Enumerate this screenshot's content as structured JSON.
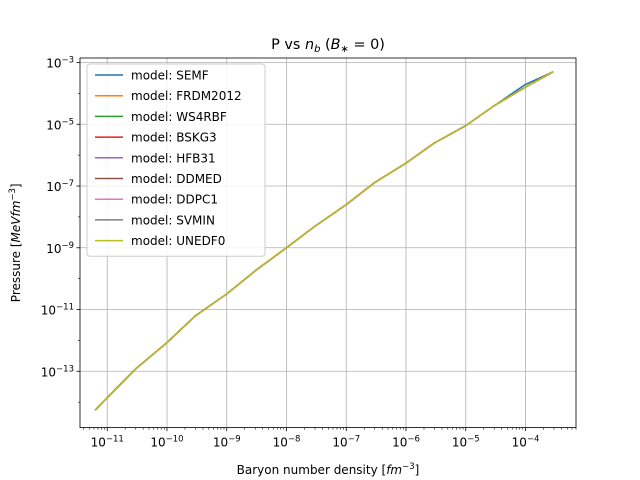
{
  "chart_data": {
    "type": "line",
    "title": "P vs n_b (B_* = 0)",
    "title_parts": {
      "prefix": "P vs ",
      "n": "n",
      "n_sub": "b",
      "paren_open": " (",
      "B": "B",
      "B_sub": "∗",
      "eq": " = 0)"
    },
    "xlabel": "Baryon number density [fm⁻³]",
    "xlabel_parts": {
      "text": "Baryon number density [",
      "unit": "fm",
      "exp": "−3",
      "close": "]"
    },
    "ylabel": "Pressure [MeVfm⁻³]",
    "ylabel_parts": {
      "text": "Pressure [",
      "unit": "MeVfm",
      "exp": "−3",
      "close": "]"
    },
    "xscale": "log",
    "yscale": "log",
    "xlim": [
      3.5e-12,
      0.0007
    ],
    "ylim": [
      1.5e-15,
      0.0014
    ],
    "grid": true,
    "legend_position": "top-left",
    "x_ticks": [
      {
        "value": 1e-11,
        "base": "10",
        "exp": "−11"
      },
      {
        "value": 1e-10,
        "base": "10",
        "exp": "−10"
      },
      {
        "value": 1e-09,
        "base": "10",
        "exp": "−9"
      },
      {
        "value": 1e-08,
        "base": "10",
        "exp": "−8"
      },
      {
        "value": 1e-07,
        "base": "10",
        "exp": "−7"
      },
      {
        "value": 1e-06,
        "base": "10",
        "exp": "−6"
      },
      {
        "value": 1e-05,
        "base": "10",
        "exp": "−5"
      },
      {
        "value": 0.0001,
        "base": "10",
        "exp": "−4"
      }
    ],
    "y_ticks": [
      {
        "value": 1e-13,
        "base": "10",
        "exp": "−13"
      },
      {
        "value": 1e-11,
        "base": "10",
        "exp": "−11"
      },
      {
        "value": 1e-09,
        "base": "10",
        "exp": "−9"
      },
      {
        "value": 1e-07,
        "base": "10",
        "exp": "−7"
      },
      {
        "value": 1e-05,
        "base": "10",
        "exp": "−5"
      },
      {
        "value": 0.001,
        "base": "10",
        "exp": "−3"
      }
    ],
    "x": [
      6.3e-12,
      1e-11,
      3e-11,
      1e-10,
      3e-10,
      1e-09,
      3e-09,
      1e-08,
      3e-08,
      1e-07,
      3e-07,
      1e-06,
      3e-06,
      1e-05,
      3e-05,
      0.0001,
      0.00029
    ],
    "series": [
      {
        "name": "model: SEMF",
        "color": "#1f77b4",
        "values": [
          5.5e-15,
          1.4e-14,
          1.2e-13,
          8.5e-13,
          6.3e-12,
          3.2e-11,
          1.8e-10,
          1e-09,
          5e-09,
          2.5e-08,
          1.3e-07,
          5.5e-07,
          2.5e-06,
          9e-06,
          4e-05,
          0.000195,
          0.0005
        ]
      },
      {
        "name": "model: FRDM2012",
        "color": "#ff7f0e",
        "values": [
          5.5e-15,
          1.4e-14,
          1.2e-13,
          8.5e-13,
          6.3e-12,
          3.2e-11,
          1.8e-10,
          1e-09,
          5e-09,
          2.5e-08,
          1.3e-07,
          5.5e-07,
          2.5e-06,
          9e-06,
          4e-05,
          0.00016,
          0.0005
        ]
      },
      {
        "name": "model: WS4RBF",
        "color": "#2ca02c",
        "values": [
          5.5e-15,
          1.4e-14,
          1.2e-13,
          8.5e-13,
          6.3e-12,
          3.2e-11,
          1.8e-10,
          1e-09,
          5e-09,
          2.5e-08,
          1.3e-07,
          5.5e-07,
          2.5e-06,
          9e-06,
          4e-05,
          0.00016,
          0.0005
        ]
      },
      {
        "name": "model: BSKG3",
        "color": "#d62728",
        "values": [
          5.5e-15,
          1.4e-14,
          1.2e-13,
          8.5e-13,
          6.3e-12,
          3.2e-11,
          1.8e-10,
          1e-09,
          5e-09,
          2.5e-08,
          1.3e-07,
          5.5e-07,
          2.5e-06,
          9e-06,
          4e-05,
          0.00016,
          0.0005
        ]
      },
      {
        "name": "model: HFB31",
        "color": "#9467bd",
        "values": [
          5.5e-15,
          1.4e-14,
          1.2e-13,
          8.5e-13,
          6.3e-12,
          3.2e-11,
          1.8e-10,
          1e-09,
          5e-09,
          2.5e-08,
          1.3e-07,
          5.5e-07,
          2.5e-06,
          9e-06,
          4e-05,
          0.00016,
          0.0005
        ]
      },
      {
        "name": "model: DDMED",
        "color": "#8c564b",
        "values": [
          5.5e-15,
          1.4e-14,
          1.2e-13,
          8.5e-13,
          6.3e-12,
          3.2e-11,
          1.8e-10,
          1e-09,
          5e-09,
          2.5e-08,
          1.3e-07,
          5.5e-07,
          2.5e-06,
          9e-06,
          4e-05,
          0.00016,
          0.0005
        ]
      },
      {
        "name": "model: DDPC1",
        "color": "#e377c2",
        "values": [
          5.5e-15,
          1.4e-14,
          1.2e-13,
          8.5e-13,
          6.3e-12,
          3.2e-11,
          1.8e-10,
          1e-09,
          5e-09,
          2.5e-08,
          1.3e-07,
          5.5e-07,
          2.5e-06,
          9e-06,
          4e-05,
          0.00016,
          0.0005
        ]
      },
      {
        "name": "model: SVMIN",
        "color": "#7f7f7f",
        "values": [
          5.5e-15,
          1.4e-14,
          1.2e-13,
          8.5e-13,
          6.3e-12,
          3.2e-11,
          1.8e-10,
          1e-09,
          5e-09,
          2.5e-08,
          1.3e-07,
          5.5e-07,
          2.5e-06,
          9e-06,
          4e-05,
          0.00016,
          0.0005
        ]
      },
      {
        "name": "model: UNEDF0",
        "color": "#bcbd22",
        "values": [
          5.5e-15,
          1.4e-14,
          1.2e-13,
          8.5e-13,
          6.3e-12,
          3.2e-11,
          1.8e-10,
          1e-09,
          5e-09,
          2.5e-08,
          1.3e-07,
          5.5e-07,
          2.5e-06,
          9e-06,
          4e-05,
          0.00016,
          0.0005
        ]
      }
    ]
  }
}
